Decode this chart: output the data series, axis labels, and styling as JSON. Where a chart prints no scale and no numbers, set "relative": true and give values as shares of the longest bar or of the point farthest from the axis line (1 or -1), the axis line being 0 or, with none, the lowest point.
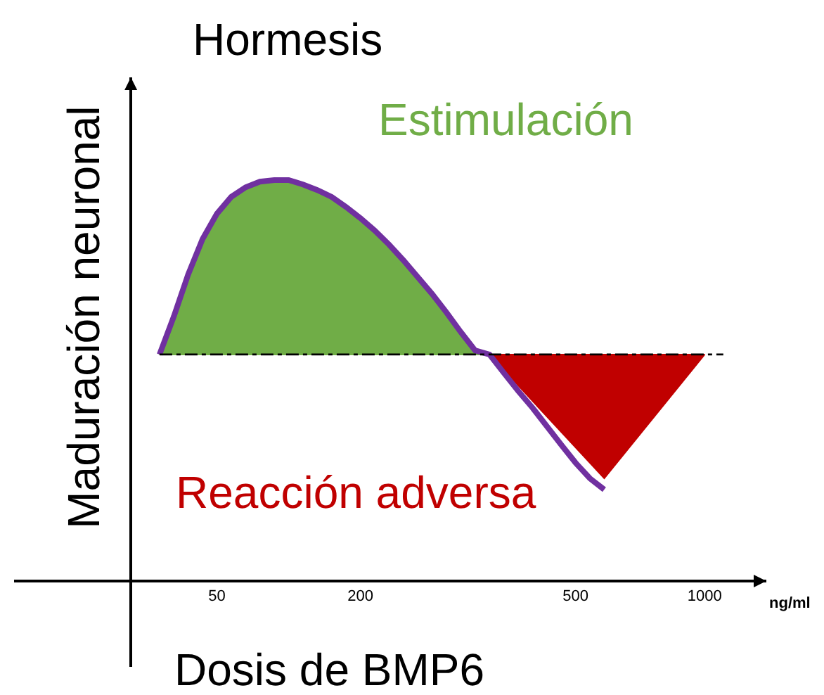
{
  "chart_data": {
    "type": "line",
    "title": "Hormesis",
    "xlabel": "Dosis de BMP6",
    "ylabel": "Maduración neuronal",
    "relative": true,
    "tick_labels": "x",
    "marker": "none",
    "categories": [
      null,
      null,
      null,
      null,
      null,
      null,
      "50",
      null,
      null,
      null,
      null,
      null,
      null,
      null,
      null,
      null,
      "200",
      null,
      null,
      null,
      null,
      null,
      null,
      null,
      null,
      null,
      null,
      null,
      null,
      null,
      null,
      "500",
      null,
      null,
      null,
      null,
      null,
      null,
      null,
      null,
      "1000"
    ],
    "series": [
      {
        "type": "area",
        "color": "#70ad47",
        "values": [
          null,
          null,
          0.565,
          0.66,
          0.765,
          0.853,
          0.916,
          0.958,
          0.982,
          0.996,
          1,
          1,
          0.989,
          0.975,
          0.958,
          0.933,
          0.905,
          0.874,
          0.839,
          0.8,
          0.758,
          0.716,
          0.67,
          0.621,
          0.575,
          0.565,
          null,
          null,
          null,
          null,
          null,
          null,
          null,
          null,
          null,
          null,
          null,
          null,
          null,
          null,
          null
        ]
      },
      {
        "type": "area",
        "color": "#c00000",
        "values": [
          null,
          null,
          null,
          null,
          null,
          null,
          null,
          null,
          null,
          null,
          null,
          null,
          null,
          null,
          null,
          null,
          null,
          null,
          null,
          null,
          null,
          null,
          null,
          null,
          null,
          0.565,
          null,
          null,
          null,
          null,
          null,
          null,
          null,
          0.256,
          null,
          null,
          null,
          null,
          null,
          null,
          0.565
        ]
      },
      {
        "color": "#7030a0",
        "values": [
          null,
          null,
          0.565,
          0.66,
          0.765,
          0.853,
          0.916,
          0.958,
          0.982,
          0.996,
          1,
          1,
          0.989,
          0.975,
          0.958,
          0.933,
          0.905,
          0.874,
          0.839,
          0.8,
          0.758,
          0.716,
          0.67,
          0.621,
          0.575,
          0.565,
          0.519,
          0.474,
          0.432,
          0.386,
          0.34,
          0.295,
          0.256,
          0.228,
          null,
          null,
          null,
          null,
          null,
          null,
          null
        ]
      }
    ],
    "ref_lines": [
      {
        "axis": "y",
        "value": 0.565,
        "color": "#000000",
        "line_style": "dashed"
      }
    ],
    "annotations": [
      "Estimulación",
      "Reacción adversa",
      "ng/ml"
    ]
  }
}
